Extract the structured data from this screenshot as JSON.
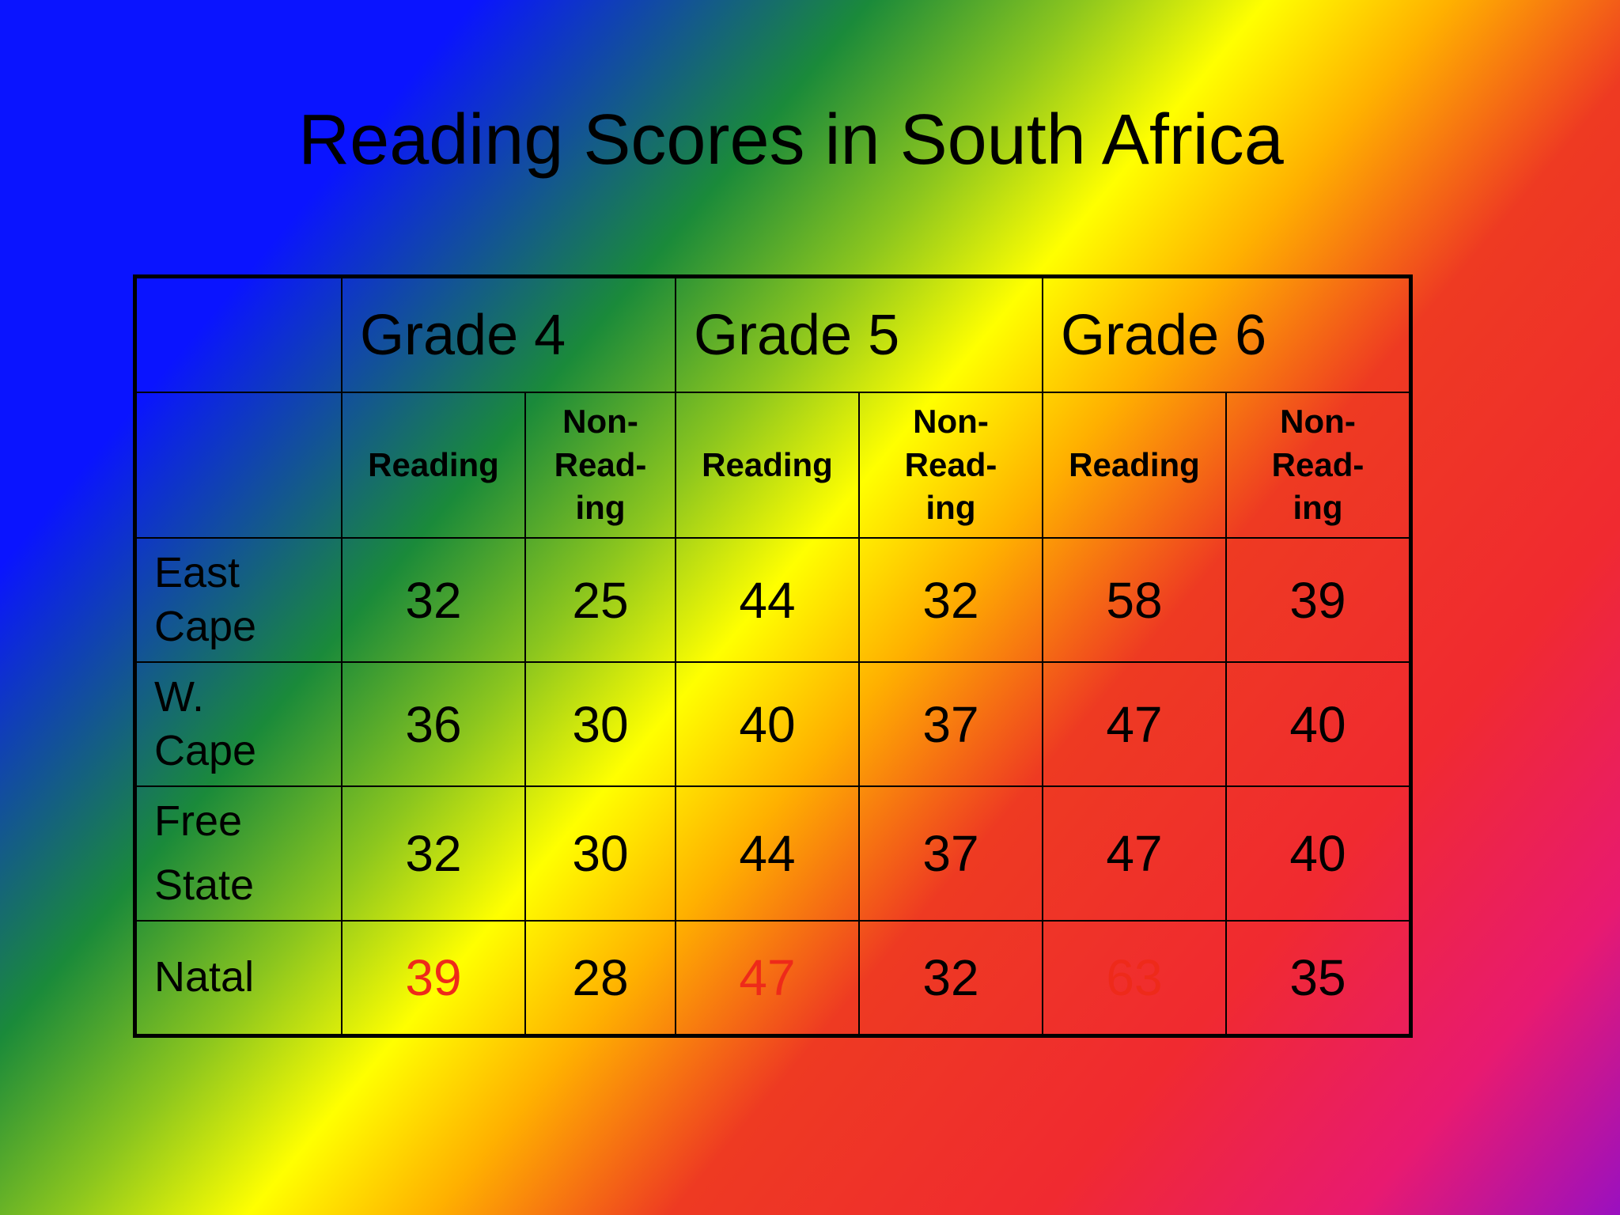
{
  "title": "Reading Scores in South Africa",
  "highlight_color": "#ee2a1a",
  "table": {
    "grades": [
      "Grade 4",
      "Grade 5",
      "Grade 6"
    ],
    "subheaders": [
      "Reading",
      "Non-\nRead-\ning"
    ],
    "rows": [
      {
        "region": "East\nCape",
        "values": [
          "32",
          "25",
          "44",
          "32",
          "58",
          "39"
        ]
      },
      {
        "region": "W.\nCape",
        "values": [
          "36",
          "30",
          "40",
          "37",
          "47",
          "40"
        ]
      },
      {
        "region": "Free\nState",
        "values": [
          "32",
          "30",
          "44",
          "37",
          "47",
          "40"
        ]
      },
      {
        "region": "Natal",
        "values": [
          "39",
          "28",
          "47",
          "32",
          "63",
          "35"
        ]
      }
    ]
  }
}
